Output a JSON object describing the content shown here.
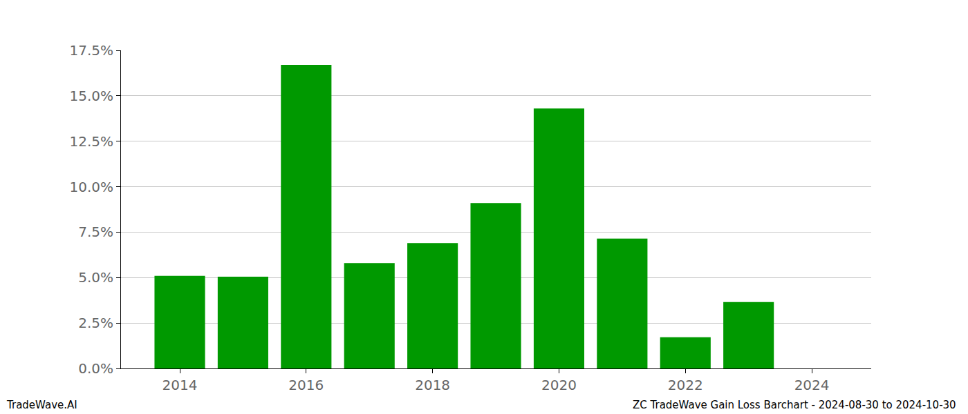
{
  "chart_data": {
    "type": "bar",
    "x": [
      2014,
      2015,
      2016,
      2017,
      2018,
      2019,
      2020,
      2021,
      2022,
      2023,
      2024
    ],
    "values": [
      5.1,
      5.05,
      16.7,
      5.8,
      6.9,
      9.1,
      14.3,
      7.15,
      1.72,
      3.65,
      null
    ],
    "color": "#009900",
    "xlim": [
      2013.07,
      2024.94
    ],
    "xticks": [
      2014,
      2016,
      2018,
      2020,
      2022,
      2024
    ],
    "ylim": [
      0,
      17.5
    ],
    "yticks": [
      {
        "value": 0,
        "label": "0.0%"
      },
      {
        "value": 2.5,
        "label": "2.5%"
      },
      {
        "value": 5,
        "label": "5.0%"
      },
      {
        "value": 7.5,
        "label": "7.5%"
      },
      {
        "value": 10,
        "label": "10.0%"
      },
      {
        "value": 12.5,
        "label": "12.5%"
      },
      {
        "value": 15,
        "label": "15.0%"
      },
      {
        "value": 17.5,
        "label": "17.5%"
      }
    ],
    "grid": true,
    "annotations": [
      "TradeWave.AI",
      "ZC TradeWave Gain Loss Barchart - 2024-08-30 to 2024-10-30"
    ]
  }
}
